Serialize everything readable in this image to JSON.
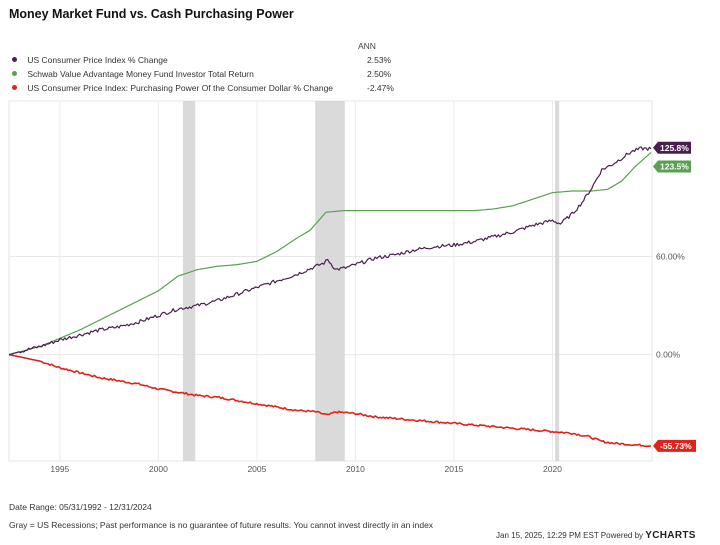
{
  "chart_data": {
    "type": "line",
    "title": "Money Market Fund vs. Cash Purchasing Power",
    "legend_header": "ANN",
    "legend_position": "top-left",
    "x_axis": {
      "range": [
        1992.42,
        2025.05
      ],
      "ticks": [
        1995,
        2000,
        2005,
        2010,
        2015,
        2020
      ],
      "tick_labels": [
        "1995",
        "2000",
        "2005",
        "2010",
        "2015",
        "2020"
      ]
    },
    "y_axis": {
      "range": [
        -65,
        155
      ],
      "ticks": [
        0,
        60
      ],
      "tick_labels": [
        "0.00%",
        "60.00%"
      ],
      "position": "right"
    },
    "recessions": [
      {
        "start": 2001.25,
        "end": 2001.87
      },
      {
        "start": 2007.96,
        "end": 2009.46
      },
      {
        "start": 2020.13,
        "end": 2020.34
      }
    ],
    "series": [
      {
        "name": "US Consumer Price Index % Change",
        "ann": "2.53%",
        "color": "#4a1f4f",
        "end_label": "125.8%",
        "noisy": true,
        "points": [
          [
            1992.42,
            0
          ],
          [
            1993,
            2
          ],
          [
            1994,
            5
          ],
          [
            1995,
            9
          ],
          [
            1996,
            12
          ],
          [
            1997,
            15
          ],
          [
            1998,
            17
          ],
          [
            1999,
            20
          ],
          [
            2000,
            24
          ],
          [
            2001,
            28
          ],
          [
            2002,
            30
          ],
          [
            2003,
            33
          ],
          [
            2004,
            37
          ],
          [
            2005,
            41
          ],
          [
            2006,
            45
          ],
          [
            2007,
            49
          ],
          [
            2008.4,
            56
          ],
          [
            2008.6,
            58
          ],
          [
            2009.0,
            52
          ],
          [
            2009.5,
            53
          ],
          [
            2010,
            55
          ],
          [
            2011,
            59
          ],
          [
            2012,
            61
          ],
          [
            2013,
            64
          ],
          [
            2014,
            66
          ],
          [
            2015,
            67
          ],
          [
            2016,
            69
          ],
          [
            2017,
            72
          ],
          [
            2018,
            75
          ],
          [
            2019,
            79
          ],
          [
            2020,
            82
          ],
          [
            2020.4,
            80
          ],
          [
            2021,
            86
          ],
          [
            2021.5,
            93
          ],
          [
            2022,
            102
          ],
          [
            2022.5,
            113
          ],
          [
            2023,
            116
          ],
          [
            2023.5,
            120
          ],
          [
            2024,
            124
          ],
          [
            2024.5,
            126
          ],
          [
            2025.0,
            125.8
          ]
        ]
      },
      {
        "name": "Schwab Value Advantage Money Fund Investor Total Return",
        "ann": "2.50%",
        "color": "#5aa052",
        "end_label": "123.5%",
        "noisy": false,
        "points": [
          [
            1992.42,
            0
          ],
          [
            1994,
            5
          ],
          [
            1995,
            10
          ],
          [
            1996,
            15
          ],
          [
            1997,
            21
          ],
          [
            1998,
            27
          ],
          [
            1999,
            33
          ],
          [
            2000,
            39
          ],
          [
            2001,
            48
          ],
          [
            2002,
            52
          ],
          [
            2003,
            54
          ],
          [
            2004,
            55
          ],
          [
            2005,
            57
          ],
          [
            2006,
            63
          ],
          [
            2007,
            71
          ],
          [
            2007.7,
            76
          ],
          [
            2008.5,
            87
          ],
          [
            2009.4,
            88
          ],
          [
            2012,
            88
          ],
          [
            2015,
            88
          ],
          [
            2016,
            88
          ],
          [
            2017,
            89
          ],
          [
            2018,
            91
          ],
          [
            2019,
            95
          ],
          [
            2020,
            99
          ],
          [
            2021,
            100
          ],
          [
            2022,
            100
          ],
          [
            2022.8,
            101
          ],
          [
            2023.5,
            106
          ],
          [
            2024.2,
            115
          ],
          [
            2025.0,
            123.5
          ]
        ]
      },
      {
        "name": "US Consumer Price Index: Purchasing Power Of the Consumer Dollar % Change",
        "ann": "-2.47%",
        "color": "#e0231a",
        "end_label": "-55.73%",
        "noisy": true,
        "points": [
          [
            1992.42,
            0
          ],
          [
            1994,
            -4
          ],
          [
            1995,
            -8
          ],
          [
            1996,
            -11
          ],
          [
            1997,
            -14
          ],
          [
            1998,
            -16
          ],
          [
            1999,
            -18
          ],
          [
            2000,
            -21
          ],
          [
            2001,
            -23
          ],
          [
            2002,
            -25
          ],
          [
            2003,
            -26
          ],
          [
            2004,
            -28
          ],
          [
            2005,
            -30
          ],
          [
            2006,
            -32
          ],
          [
            2007,
            -34
          ],
          [
            2008.0,
            -35
          ],
          [
            2008.6,
            -37
          ],
          [
            2009.0,
            -35
          ],
          [
            2010,
            -36
          ],
          [
            2011,
            -38
          ],
          [
            2012,
            -39
          ],
          [
            2013,
            -40
          ],
          [
            2014,
            -41
          ],
          [
            2015,
            -42
          ],
          [
            2016,
            -43
          ],
          [
            2017,
            -44
          ],
          [
            2018,
            -45
          ],
          [
            2019,
            -46
          ],
          [
            2020,
            -47
          ],
          [
            2021,
            -48
          ],
          [
            2021.8,
            -50
          ],
          [
            2022.5,
            -53
          ],
          [
            2023,
            -54
          ],
          [
            2024,
            -55
          ],
          [
            2025.0,
            -55.73
          ]
        ]
      }
    ]
  },
  "footer": {
    "date_range": "Date Range: 05/31/1992 - 12/31/2024",
    "note": "Gray = US Recessions; Past performance is no guarantee of future results. You cannot invest directly in an index",
    "timestamp": "Jan 15, 2025, 12:29 PM EST Powered by",
    "brand": "YCHARTS"
  }
}
